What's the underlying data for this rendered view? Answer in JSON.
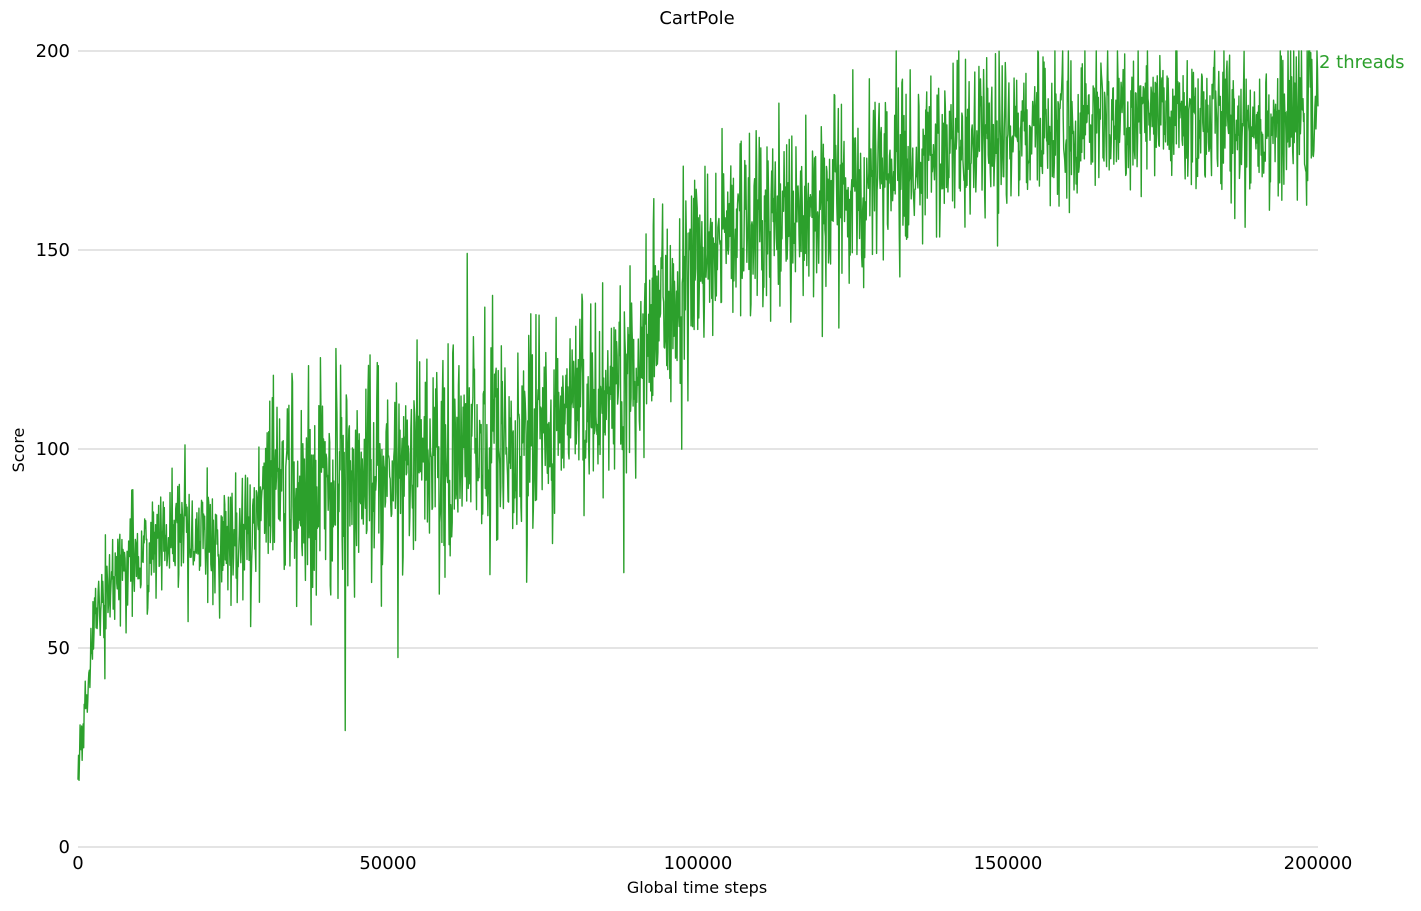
{
  "chart_data": {
    "type": "line",
    "title": "CartPole",
    "xlabel": "Global time steps",
    "ylabel": "Score",
    "xlim": [
      0,
      200000
    ],
    "ylim": [
      0,
      200
    ],
    "xticks": [
      "0",
      "50000",
      "100000",
      "150000",
      "200000"
    ],
    "yticks": [
      "0",
      "50",
      "100",
      "150",
      "200"
    ],
    "grid": "horizontal",
    "legend": "inline-right",
    "series": [
      {
        "name": "2 threads",
        "color": "#2ca02c",
        "anchors": [
          [
            0,
            18
          ],
          [
            1000,
            30
          ],
          [
            2000,
            50
          ],
          [
            3000,
            60
          ],
          [
            5000,
            66
          ],
          [
            8000,
            72
          ],
          [
            12000,
            76
          ],
          [
            16000,
            78
          ],
          [
            20000,
            76
          ],
          [
            25000,
            78
          ],
          [
            28000,
            80
          ],
          [
            30000,
            88
          ],
          [
            35000,
            90
          ],
          [
            40000,
            92
          ],
          [
            45000,
            95
          ],
          [
            50000,
            95
          ],
          [
            55000,
            96
          ],
          [
            60000,
            98
          ],
          [
            65000,
            100
          ],
          [
            70000,
            103
          ],
          [
            75000,
            105
          ],
          [
            80000,
            110
          ],
          [
            85000,
            115
          ],
          [
            90000,
            122
          ],
          [
            95000,
            135
          ],
          [
            100000,
            148
          ],
          [
            105000,
            155
          ],
          [
            110000,
            158
          ],
          [
            115000,
            160
          ],
          [
            120000,
            160
          ],
          [
            125000,
            165
          ],
          [
            130000,
            170
          ],
          [
            135000,
            172
          ],
          [
            140000,
            175
          ],
          [
            145000,
            176
          ],
          [
            150000,
            178
          ],
          [
            155000,
            180
          ],
          [
            160000,
            182
          ],
          [
            165000,
            182
          ],
          [
            170000,
            182
          ],
          [
            175000,
            183
          ],
          [
            180000,
            183
          ],
          [
            185000,
            182
          ],
          [
            190000,
            182
          ],
          [
            195000,
            182
          ],
          [
            200000,
            185
          ]
        ],
        "spread_anchors": [
          [
            0,
            6
          ],
          [
            2000,
            8
          ],
          [
            5000,
            12
          ],
          [
            20000,
            12
          ],
          [
            28000,
            14
          ],
          [
            30000,
            22
          ],
          [
            60000,
            24
          ],
          [
            90000,
            24
          ],
          [
            100000,
            20
          ],
          [
            120000,
            20
          ],
          [
            130000,
            18
          ],
          [
            160000,
            16
          ],
          [
            200000,
            16
          ]
        ],
        "points": 2400,
        "seed": 7,
        "max": 200,
        "min": 0
      }
    ]
  }
}
